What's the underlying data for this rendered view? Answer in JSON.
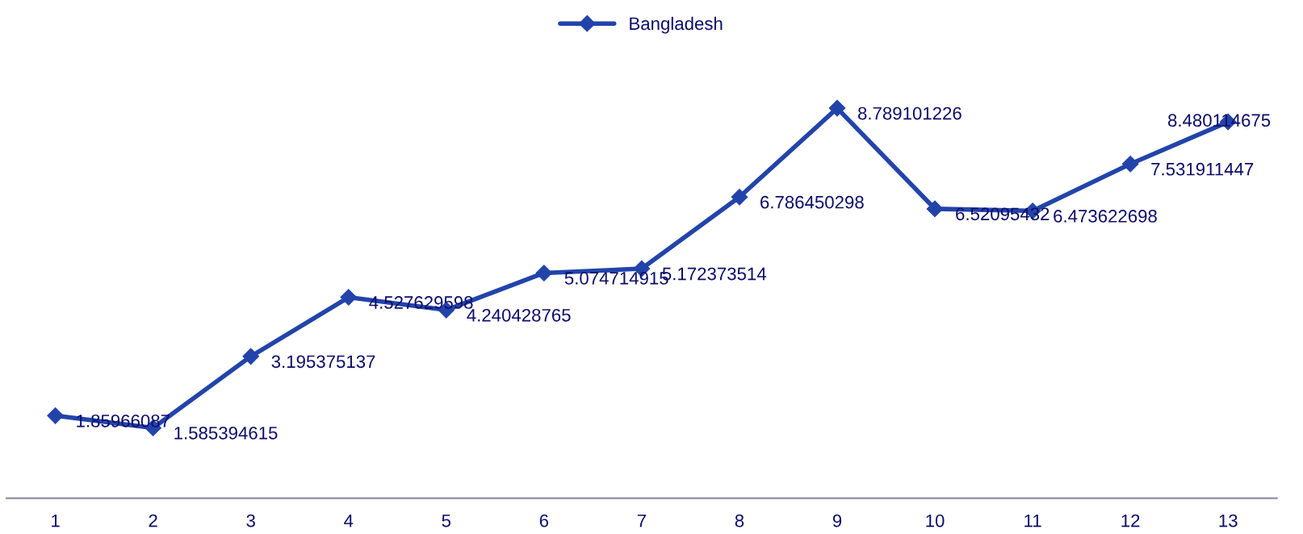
{
  "chart_data": {
    "type": "line",
    "categories": [
      "1",
      "2",
      "3",
      "4",
      "5",
      "6",
      "7",
      "8",
      "9",
      "10",
      "11",
      "12",
      "13"
    ],
    "series": [
      {
        "name": "Bangladesh",
        "color": "#2244aa",
        "values": [
          1.85966087,
          1.585394615,
          3.195375137,
          4.527629598,
          4.240428765,
          5.074714915,
          5.172373514,
          6.786450298,
          8.789101226,
          6.52095432,
          6.473622698,
          7.531911447,
          8.480114675
        ]
      }
    ],
    "data_labels": true,
    "marker": "diamond",
    "line_style": "solid",
    "legend": "top",
    "grid": false,
    "tick_labels": "x"
  }
}
